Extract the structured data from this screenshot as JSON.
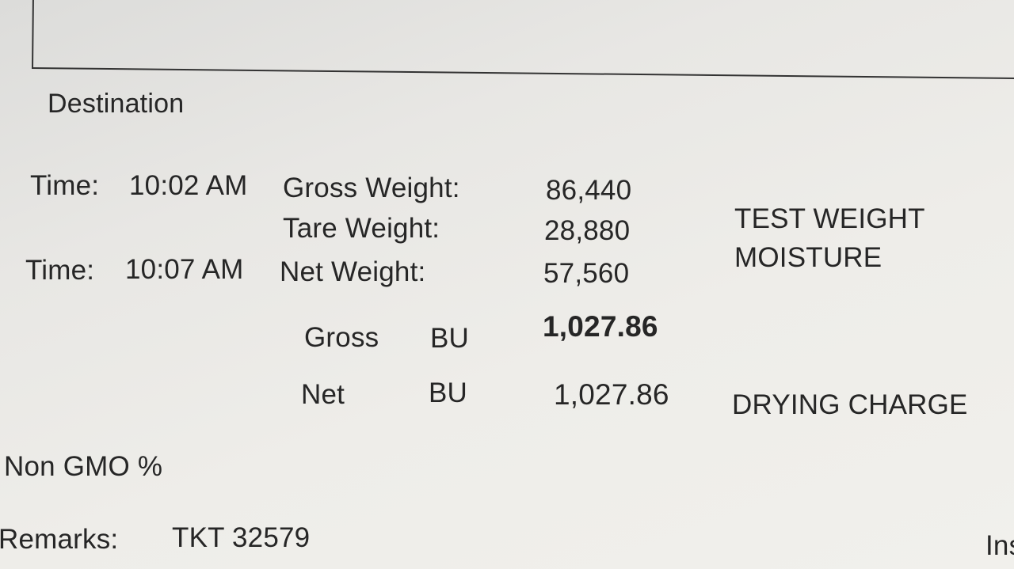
{
  "ticket": {
    "destination_label": "Destination",
    "time_in_label": "Time:",
    "time_in": "10:02 AM",
    "time_out_label": "Time:",
    "time_out": "10:07 AM",
    "gross_weight_label": "Gross Weight:",
    "gross_weight": "86,440",
    "tare_weight_label": "Tare Weight:",
    "tare_weight": "28,880",
    "net_weight_label": "Net Weight:",
    "net_weight": "57,560",
    "test_weight_label": "TEST WEIGHT",
    "moisture_label": "MOISTURE",
    "gross_bu_label": "Gross",
    "gross_bu_unit": "BU",
    "gross_bu": "1,027.86",
    "net_bu_label": "Net",
    "net_bu_unit": "BU",
    "net_bu": "1,027.86",
    "drying_charge_label": "DRYING CHARGE",
    "non_gmo_label": "Non GMO %",
    "remarks_label": "Remarks:",
    "remarks": "TKT 32579",
    "cut_off_text": "Ins"
  }
}
